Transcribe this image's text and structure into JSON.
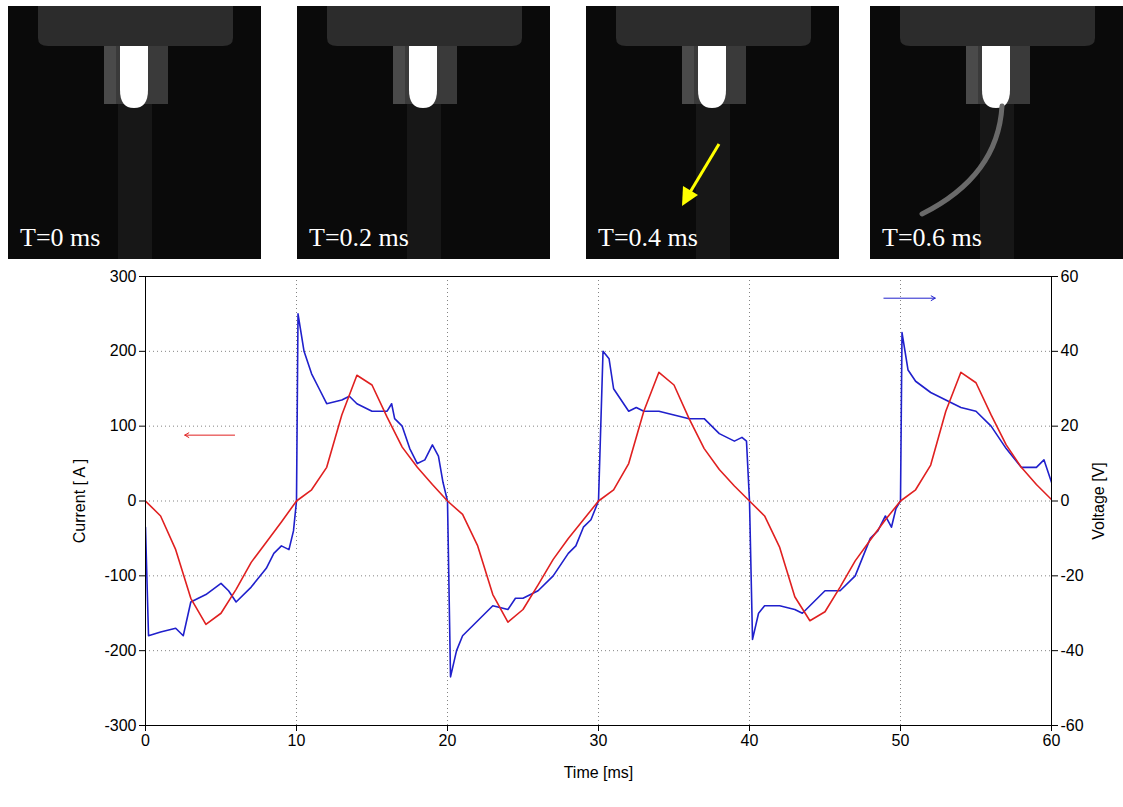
{
  "frames": [
    {
      "label": "T=0 ms"
    },
    {
      "label": "T=0.2 ms"
    },
    {
      "label": "T=0.4 ms"
    },
    {
      "label": "T=0.6 ms"
    }
  ],
  "chart_data": {
    "type": "line",
    "xlabel": "Time [ms]",
    "ylabel": "Current [ A ]",
    "y2label": "Voltage [V]",
    "xlim": [
      0,
      60
    ],
    "xticks": [
      0,
      10,
      20,
      30,
      40,
      50,
      60
    ],
    "ylim": [
      -300,
      300
    ],
    "yticks": [
      -300,
      -200,
      -100,
      0,
      100,
      200,
      300
    ],
    "y2lim": [
      -60,
      60
    ],
    "y2ticks": [
      -60,
      -40,
      -20,
      0,
      20,
      40,
      60
    ],
    "grid": true,
    "series": [
      {
        "color": "#e02020",
        "x": [
          0,
          1,
          2,
          3,
          4,
          5,
          6,
          7,
          8,
          9,
          10,
          11,
          12,
          13,
          14,
          15,
          16,
          17,
          18,
          19,
          20,
          21,
          22,
          23,
          24,
          25,
          26,
          27,
          28,
          29,
          30,
          31,
          32,
          33,
          34,
          35,
          36,
          37,
          38,
          39,
          40,
          41,
          42,
          43,
          44,
          45,
          46,
          47,
          48,
          49,
          50,
          51,
          52,
          53,
          54,
          55,
          56,
          57,
          58,
          59,
          60
        ],
        "values": [
          0,
          -20,
          -65,
          -130,
          -165,
          -150,
          -118,
          -82,
          -55,
          -28,
          0,
          15,
          45,
          115,
          168,
          155,
          112,
          72,
          45,
          22,
          0,
          -18,
          -60,
          -125,
          -162,
          -145,
          -112,
          -78,
          -50,
          -25,
          0,
          15,
          50,
          120,
          172,
          155,
          110,
          70,
          42,
          20,
          0,
          -20,
          -62,
          -128,
          -160,
          -148,
          -115,
          -80,
          -52,
          -25,
          0,
          15,
          48,
          120,
          172,
          158,
          115,
          75,
          45,
          22,
          2
        ]
      },
      {
        "color": "#2020cc",
        "axis": "y2",
        "x": [
          0,
          0.2,
          1,
          2,
          2.5,
          3,
          3.5,
          4,
          5,
          5.5,
          6,
          7,
          8,
          8.5,
          9,
          9.5,
          9.8,
          10,
          10.1,
          10.5,
          11,
          11.5,
          12,
          13,
          13.5,
          14,
          15,
          16,
          16.3,
          16.5,
          17,
          17.5,
          18,
          18.5,
          19,
          19.4,
          19.7,
          20,
          20.2,
          20.6,
          21,
          22,
          23,
          24,
          24.5,
          25,
          26,
          27,
          28,
          28.5,
          29,
          29.5,
          30,
          30.3,
          30.7,
          31,
          32,
          32.5,
          33,
          34,
          35,
          36,
          37,
          37.5,
          38,
          39,
          39.5,
          39.8,
          40,
          40.2,
          40.6,
          41,
          42,
          43,
          43.5,
          44,
          45,
          46,
          47,
          48,
          48.5,
          49,
          49.4,
          49.7,
          50,
          50.1,
          50.5,
          51,
          52,
          53,
          53.5,
          54,
          55,
          56,
          57,
          58,
          59,
          59.5,
          60
        ],
        "values": [
          -7,
          -36,
          -35,
          -34,
          -36,
          -27,
          -26,
          -25,
          -22,
          -24,
          -27,
          -23,
          -18,
          -14,
          -12,
          -13,
          -8,
          0,
          50,
          40,
          34,
          30,
          26,
          27,
          28,
          26,
          24,
          24,
          26,
          22,
          20,
          14,
          10,
          11,
          15,
          12,
          5,
          0,
          -47,
          -40,
          -36,
          -32,
          -28,
          -29,
          -26,
          -26,
          -24,
          -20,
          -14,
          -12,
          -7,
          -5,
          0,
          40,
          38,
          30,
          24,
          25,
          24,
          24,
          23,
          22,
          22,
          20,
          18,
          16,
          17,
          16,
          0,
          -37,
          -30,
          -28,
          -28,
          -29,
          -30,
          -28,
          -24,
          -24,
          -20,
          -10,
          -8,
          -4,
          -7,
          -2,
          0,
          45,
          35,
          32,
          29,
          27,
          26,
          25,
          24,
          20,
          14,
          9,
          9,
          11,
          5
        ]
      }
    ]
  }
}
